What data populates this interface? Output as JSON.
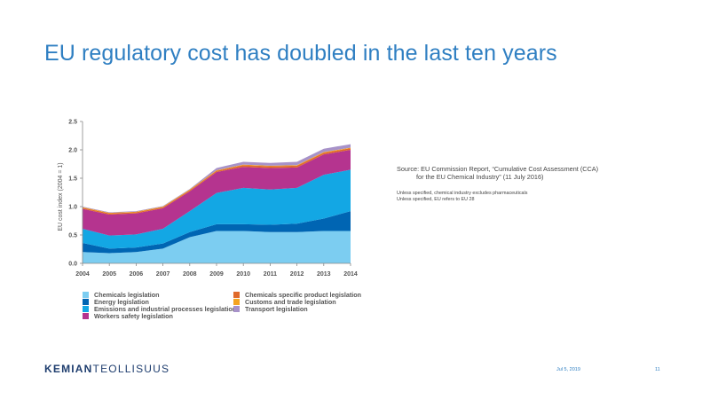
{
  "slide": {
    "title": "EU regulatory cost has doubled in the last ten years",
    "source_line1": "Source: EU Commission Report, “Cumulative Cost Assessment (CCA)",
    "source_line2": "for the EU Chemical Industry” (11 July 2016)",
    "note1": "Unless specified, chemical industry excludes pharmaceuticals",
    "note2": "Unless specified, EU refers to EU 28",
    "logo_bold": "KEMIAN",
    "logo_regular": "TEOLLISUUS",
    "date": "Jul 5, 2019",
    "page": "11"
  },
  "chart_data": {
    "type": "area",
    "stacked": true,
    "x": [
      "2004",
      "2005",
      "2006",
      "2007",
      "2008",
      "2009",
      "2010",
      "2011",
      "2012",
      "2013",
      "2014"
    ],
    "ylabel": "EU cost index (2004 = 1)",
    "ylim": [
      0,
      2.5
    ],
    "yticks": [
      "0.0",
      "0.5",
      "1.0",
      "1.5",
      "2.0",
      "2.5"
    ],
    "grid": false,
    "legend_placement": "bottom",
    "series": [
      {
        "name": "Chemicals legislation",
        "color": "#7ccdf1",
        "values": [
          0.2,
          0.18,
          0.2,
          0.26,
          0.46,
          0.57,
          0.57,
          0.55,
          0.55,
          0.57,
          0.57
        ]
      },
      {
        "name": "Energy legislation",
        "color": "#0065b3",
        "values": [
          0.16,
          0.08,
          0.08,
          0.09,
          0.09,
          0.12,
          0.12,
          0.13,
          0.15,
          0.22,
          0.35
        ]
      },
      {
        "name": "Emissions and industrial processes legislation",
        "color": "#13a7e4",
        "values": [
          0.25,
          0.23,
          0.23,
          0.26,
          0.37,
          0.55,
          0.64,
          0.62,
          0.63,
          0.77,
          0.73
        ]
      },
      {
        "name": "Workers safety legislation",
        "color": "#b5348f",
        "values": [
          0.35,
          0.37,
          0.37,
          0.36,
          0.35,
          0.37,
          0.37,
          0.38,
          0.36,
          0.36,
          0.35
        ]
      },
      {
        "name": "Chemicals specific product legislation",
        "color": "#e06a2b",
        "values": [
          0.02,
          0.02,
          0.02,
          0.02,
          0.02,
          0.02,
          0.03,
          0.03,
          0.03,
          0.03,
          0.03
        ]
      },
      {
        "name": "Customs and trade legislation",
        "color": "#f4a421",
        "values": [
          0.01,
          0.01,
          0.01,
          0.01,
          0.01,
          0.01,
          0.01,
          0.01,
          0.01,
          0.01,
          0.01
        ]
      },
      {
        "name": "Transport legislation",
        "color": "#a792c9",
        "values": [
          0.01,
          0.01,
          0.01,
          0.01,
          0.01,
          0.04,
          0.05,
          0.05,
          0.06,
          0.06,
          0.06
        ]
      }
    ],
    "legend_order": [
      0,
      4,
      1,
      5,
      2,
      6,
      3
    ]
  }
}
